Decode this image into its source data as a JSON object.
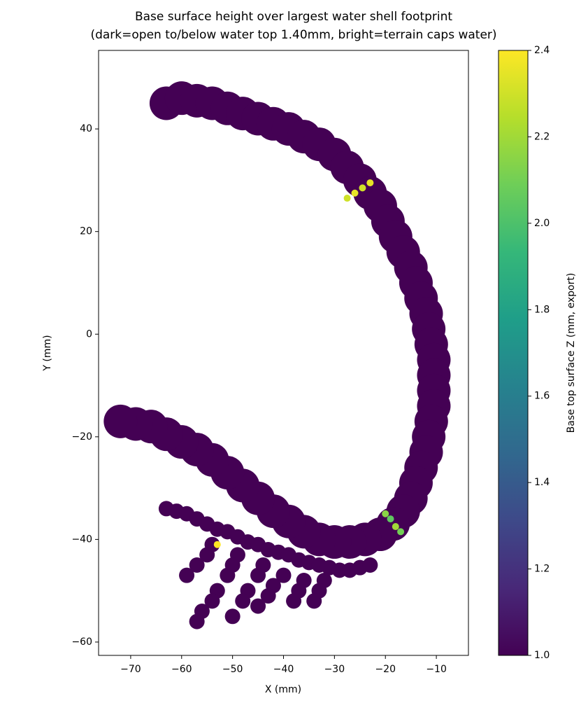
{
  "chart_data": {
    "type": "scatter",
    "title": "Base surface height over largest water shell footprint",
    "subtitle": "(dark=open to/below water top 1.40mm, bright=terrain caps water)",
    "x_label": "X (mm)",
    "y_label": "Y (mm)",
    "colorbar_label": "Base top surface Z (mm, export)",
    "colormap": "viridis",
    "xlim": [
      -76.3,
      -3.7
    ],
    "ylim": [
      -62.6,
      55.3
    ],
    "clim": [
      1.0,
      2.4
    ],
    "xticks": [
      {
        "value": -70,
        "label": "−70"
      },
      {
        "value": -60,
        "label": "−60"
      },
      {
        "value": -50,
        "label": "−50"
      },
      {
        "value": -40,
        "label": "−40"
      },
      {
        "value": -30,
        "label": "−30"
      },
      {
        "value": -20,
        "label": "−20"
      },
      {
        "value": -10,
        "label": "−10"
      }
    ],
    "yticks": [
      {
        "value": -60,
        "label": "−60"
      },
      {
        "value": -40,
        "label": "−40"
      },
      {
        "value": -20,
        "label": "−20"
      },
      0,
      20,
      40
    ],
    "cticks": [
      {
        "value": 1.0,
        "label": "1.0"
      },
      1.2,
      1.4,
      1.6,
      1.8,
      {
        "value": 2.0,
        "label": "2.0"
      },
      2.2,
      2.4
    ],
    "series": [
      {
        "x": [
          -63,
          -60,
          -57,
          -54,
          -51,
          -48,
          -45,
          -42,
          -39,
          -36,
          -33,
          -30,
          -27.5,
          -25,
          -23,
          -21,
          -19.5,
          -18,
          -16.5,
          -15,
          -14,
          -13,
          -12,
          -11.5,
          -11,
          -10.5,
          -10.5,
          -10.5,
          -10.5,
          -11,
          -11.5,
          -12,
          -13,
          -14,
          -15,
          -16.5,
          -18.5,
          -21,
          -24,
          -27,
          -30,
          -33,
          -36,
          -39,
          -42,
          -45,
          -48,
          -51,
          -54,
          -57,
          -60,
          -63,
          -66,
          -69,
          -72
        ],
        "values": [
          45,
          46,
          45.5,
          45,
          44,
          43,
          42,
          41,
          40,
          38.5,
          37,
          35,
          32.5,
          30,
          27.5,
          25,
          22,
          19,
          16,
          13,
          10,
          7,
          4,
          1,
          -2,
          -5,
          -8,
          -11,
          -14,
          -17,
          -20,
          -23,
          -26,
          -29,
          -32,
          -34.5,
          -37,
          -39,
          -40,
          -40.5,
          -40.5,
          -40,
          -38.5,
          -36.5,
          -34.5,
          -32,
          -29.5,
          -27,
          -24.5,
          -22.5,
          -21,
          -19.5,
          -18,
          -17.5,
          -17
        ],
        "z": [
          1,
          1,
          1,
          1,
          1,
          1,
          1,
          1,
          1,
          1,
          1,
          1,
          1,
          1,
          1,
          1,
          1,
          1,
          1,
          1,
          1,
          1,
          1,
          1,
          1,
          1,
          1,
          1,
          1,
          1,
          1,
          1,
          1,
          1,
          1,
          1,
          1,
          1,
          1,
          1,
          1,
          1,
          1,
          1,
          1,
          1,
          1,
          1,
          1,
          1,
          1,
          1,
          1,
          1,
          1
        ]
      },
      {
        "x": [
          -63,
          -61,
          -59,
          -57,
          -55,
          -53,
          -51,
          -49,
          -47,
          -45,
          -43,
          -41,
          -39,
          -37,
          -35,
          -33,
          -31,
          -29,
          -27,
          -25,
          -23,
          -54,
          -55,
          -57,
          -59,
          -49,
          -50,
          -51,
          -53,
          -54,
          -56,
          -57,
          -44,
          -45,
          -47,
          -48,
          -50,
          -40,
          -42,
          -43,
          -45,
          -36,
          -37,
          -38,
          -32,
          -33,
          -34
        ],
        "values": [
          -34,
          -34.5,
          -35,
          -36,
          -37,
          -38,
          -38.5,
          -39.5,
          -40.5,
          -41,
          -42,
          -42.5,
          -43,
          -44,
          -44.5,
          -45,
          -45.5,
          -46,
          -46,
          -45.5,
          -45,
          -41,
          -43,
          -45,
          -47,
          -43,
          -45,
          -47,
          -50,
          -52,
          -54,
          -56,
          -45,
          -47,
          -50,
          -52,
          -55,
          -47,
          -49,
          -51,
          -53,
          -48,
          -50,
          -52,
          -48,
          -50,
          -52
        ],
        "z": [
          1,
          1,
          1,
          1,
          1,
          1,
          1,
          1,
          1,
          1,
          1,
          1,
          1,
          1,
          1,
          1,
          1,
          1,
          1,
          1,
          1,
          1,
          1,
          1,
          1,
          1,
          1,
          1,
          1,
          1,
          1,
          1,
          1,
          1,
          1,
          1,
          1,
          1,
          1,
          1,
          1,
          1,
          1,
          1,
          1,
          1,
          1
        ]
      },
      {
        "x": [
          -27.5,
          -26,
          -24.5,
          -23,
          -20,
          -19,
          -18,
          -17,
          -53
        ],
        "values": [
          26.5,
          27.5,
          28.5,
          29.5,
          -35,
          -36,
          -37.5,
          -38.5,
          -41
        ],
        "z": [
          2.3,
          2.35,
          2.3,
          2.35,
          2.15,
          2.05,
          2.2,
          2.1,
          2.4
        ]
      }
    ]
  }
}
